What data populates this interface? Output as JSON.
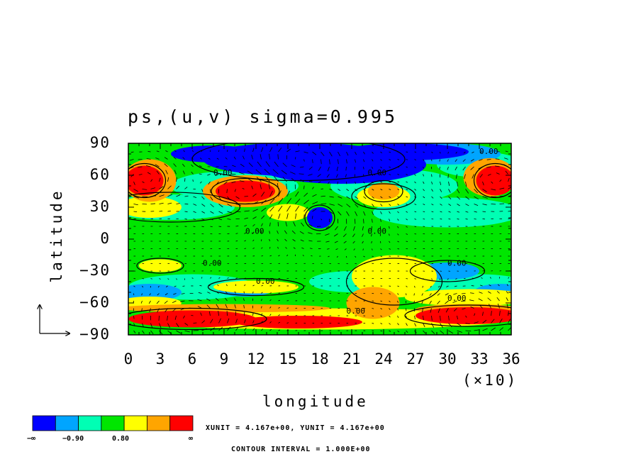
{
  "chart_data": {
    "type": "heatmap",
    "title": "ps,(u,v) sigma=0.995",
    "xlabel": "longitude",
    "ylabel": "latitude",
    "x_multiplier": "(×10)",
    "xlim": [
      0,
      36
    ],
    "ylim": [
      -90,
      90
    ],
    "x_ticks": [
      "0",
      "3",
      "6",
      "9",
      "12",
      "15",
      "18",
      "21",
      "24",
      "27",
      "30",
      "33",
      "36"
    ],
    "y_ticks": [
      "90",
      "60",
      "30",
      "0",
      "−30",
      "−60",
      "−90"
    ],
    "colorbar": {
      "colors": [
        "#0000ff",
        "#00a5ff",
        "#00ffb4",
        "#00e600",
        "#ffff00",
        "#ffa500",
        "#ff0000"
      ],
      "labels": [
        "−∞",
        "−0.90",
        "0.80",
        "∞"
      ]
    },
    "contour_labels": [
      "0.00",
      "0.00",
      "0.00",
      "0.00",
      "0.00",
      "0.00",
      "0.00",
      "0.00",
      "0.00",
      "0.00"
    ],
    "vector_info": "XUNIT = 4.167e+00, YUNIT = 4.167e+00",
    "contour_info": "CONTOUR INTERVAL = 1.000E+00"
  }
}
